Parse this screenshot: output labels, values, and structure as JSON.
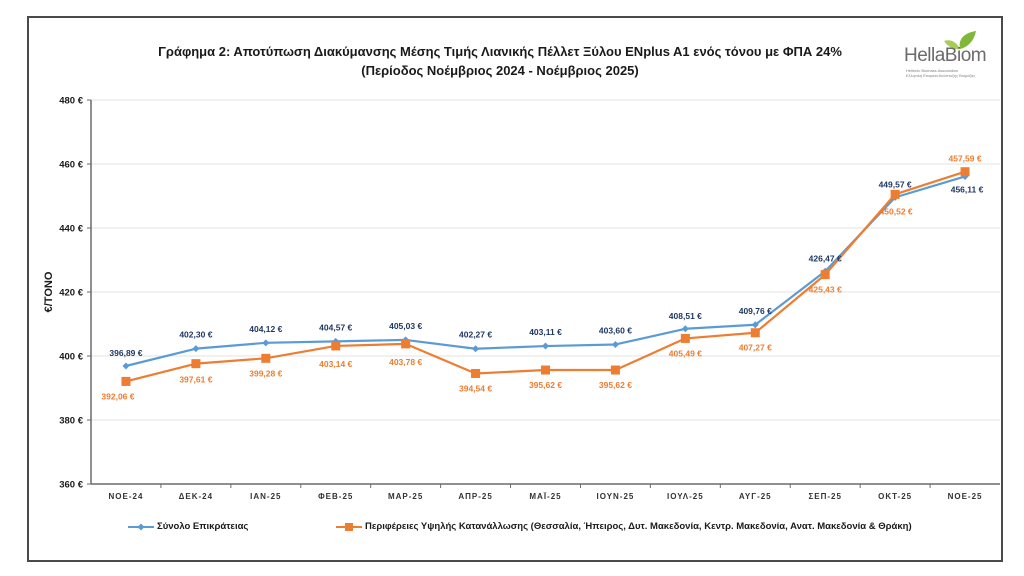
{
  "chart_data": {
    "type": "line",
    "title": "Γράφημα 2: Αποτύπωση Διακύμανσης Μέσης Τιμής Λιανικής Πέλλετ Ξύλου ENplus A1 ενός τόνου με ΦΠΑ 24%",
    "subtitle": "(Περίοδος Νοέμβριος 2024 - Νοέμβριος 2025)",
    "xlabel": "",
    "ylabel": "€/ΤΟΝΟ",
    "ylim": [
      360,
      480
    ],
    "yticks": [
      360,
      380,
      400,
      420,
      440,
      460,
      480
    ],
    "ytick_labels": [
      "360 €",
      "380 €",
      "400 €",
      "420 €",
      "440 €",
      "460 €",
      "480 €"
    ],
    "grid": true,
    "legend_position": "bottom",
    "categories": [
      "ΝΟΕ-24",
      "ΔΕΚ-24",
      "ΙΑΝ-25",
      "ΦΕΒ-25",
      "ΜΑΡ-25",
      "ΑΠΡ-25",
      "ΜΑΪ-25",
      "ΙΟΥΝ-25",
      "ΙΟΥΛ-25",
      "ΑΥΓ-25",
      "ΣΕΠ-25",
      "ΟΚΤ-25",
      "ΝΟΕ-25"
    ],
    "series": [
      {
        "name": "Σύνολο Επικράτειας",
        "color": "#5B9BD5",
        "label_color": "#1F3864",
        "marker": "diamond",
        "values": [
          396.89,
          402.3,
          404.12,
          404.57,
          405.03,
          402.27,
          403.11,
          403.6,
          408.51,
          409.76,
          426.47,
          449.57,
          456.11
        ],
        "labels": [
          "396,89 €",
          "402,30 €",
          "404,12 €",
          "404,57 €",
          "405,03 €",
          "402,27 €",
          "403,11 €",
          "403,60 €",
          "408,51 €",
          "409,76 €",
          "426,47 €",
          "449,57 €",
          "456,11 €"
        ]
      },
      {
        "name": "Περιφέρειες Υψηλής Κατανάλλωσης (Θεσσαλία, Ήπειρος, Δυτ. Μακεδονία, Κεντρ. Μακεδονία, Ανατ. Μακεδονία & Θράκη)",
        "color": "#ED7D31",
        "label_color": "#ED7D31",
        "marker": "square",
        "values": [
          392.06,
          397.61,
          399.28,
          403.14,
          403.78,
          394.54,
          395.62,
          395.62,
          405.49,
          407.27,
          425.43,
          450.52,
          457.59
        ],
        "labels": [
          "392,06 €",
          "397,61 €",
          "399,28 €",
          "403,14 €",
          "403,78 €",
          "394,54 €",
          "395,62 €",
          "395,62 €",
          "405,49 €",
          "407,27 €",
          "425,43 €",
          "450,52 €",
          "457,59 €"
        ]
      }
    ]
  },
  "logo": {
    "name": "HellaBiom",
    "subtitle_en": "Hellenic Biomass Association",
    "subtitle_gr": "Ελληνική Εταιρεία Ανάπτυξης Βιομάζας"
  }
}
